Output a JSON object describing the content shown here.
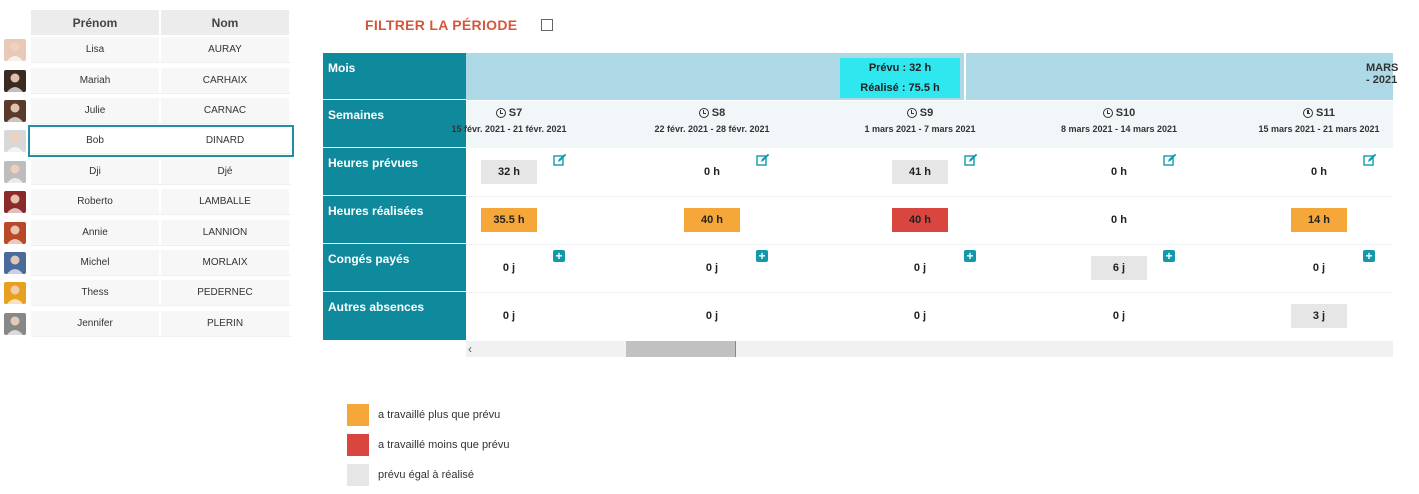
{
  "employees": {
    "headers": {
      "prenom": "Prénom",
      "nom": "Nom"
    },
    "rows": [
      {
        "prenom": "Lisa",
        "nom": "AURAY",
        "avatar": "female-avatar-icon",
        "color": "#e8c9b8"
      },
      {
        "prenom": "Mariah",
        "nom": "CARHAIX",
        "avatar": "female-avatar-icon",
        "color": "#3a2a20"
      },
      {
        "prenom": "Julie",
        "nom": "CARNAC",
        "avatar": "female-avatar-icon",
        "color": "#5a3a2a"
      },
      {
        "prenom": "Bob",
        "nom": "DINARD",
        "avatar": "male-avatar-icon",
        "color": "#d8d8d8"
      },
      {
        "prenom": "Dji",
        "nom": "Djé",
        "avatar": "default-user-icon",
        "color": "#bdbdbd"
      },
      {
        "prenom": "Roberto",
        "nom": "LAMBALLE",
        "avatar": "male-avatar-icon",
        "color": "#8a2a2a"
      },
      {
        "prenom": "Annie",
        "nom": "LANNION",
        "avatar": "female-avatar-icon",
        "color": "#b84a2a"
      },
      {
        "prenom": "Michel",
        "nom": "MORLAIX",
        "avatar": "male-avatar-icon",
        "color": "#4a6a9a"
      },
      {
        "prenom": "Thess",
        "nom": "PEDERNEC",
        "avatar": "female-avatar-icon",
        "color": "#e8a020"
      },
      {
        "prenom": "Jennifer",
        "nom": "PLERIN",
        "avatar": "female-avatar-icon",
        "color": "#888888"
      }
    ],
    "selected": "Bob"
  },
  "filter": {
    "label": "FILTRER LA PÉRIODE"
  },
  "planning": {
    "row_labels": {
      "mois": "Mois",
      "semaines": "Semaines",
      "heures_prevues": "Heures prévues",
      "heures_realisees": "Heures réalisées",
      "conges_payes": "Congés payés",
      "autres_absences": "Autres absences"
    },
    "month_summary": {
      "prevu": "Prévu : 32 h",
      "realise": "Réalisé : 75.5 h"
    },
    "month_title": "MARS - 2021",
    "weeks": [
      {
        "name": "S7",
        "range": "15 févr. 2021 - 21 févr. 2021",
        "prevues": "32 h",
        "prevues_style": "gray",
        "realisees": "35.5 h",
        "realisees_style": "orange",
        "conges": "0 j",
        "conges_style": "plain",
        "autres": "0 j",
        "autres_style": "plain"
      },
      {
        "name": "S8",
        "range": "22 févr. 2021 - 28 févr. 2021",
        "prevues": "0 h",
        "prevues_style": "plain",
        "realisees": "40 h",
        "realisees_style": "orange",
        "conges": "0 j",
        "conges_style": "plain",
        "autres": "0 j",
        "autres_style": "plain"
      },
      {
        "name": "S9",
        "range": "1 mars 2021 - 7 mars 2021",
        "prevues": "41 h",
        "prevues_style": "gray",
        "realisees": "40 h",
        "realisees_style": "red",
        "conges": "0 j",
        "conges_style": "plain",
        "autres": "0 j",
        "autres_style": "plain"
      },
      {
        "name": "S10",
        "range": "8 mars 2021 - 14 mars 2021",
        "prevues": "0 h",
        "prevues_style": "plain",
        "realisees": "0 h",
        "realisees_style": "plain",
        "conges": "6 j",
        "conges_style": "gray",
        "autres": "0 j",
        "autres_style": "plain"
      },
      {
        "name": "S11",
        "range": "15 mars 2021 - 21 mars 2021",
        "prevues": "0 h",
        "prevues_style": "plain",
        "realisees": "14 h",
        "realisees_style": "orange",
        "conges": "0 j",
        "conges_style": "plain",
        "autres": "3 j",
        "autres_style": "gray"
      }
    ]
  },
  "legend": [
    {
      "label": "a travaillé plus que prévu",
      "color": "#f6a73a"
    },
    {
      "label": "a travaillé moins que prévu",
      "color": "#d9463f"
    },
    {
      "label": "prévu égal à réalisé",
      "color": "#e6e6e6"
    }
  ],
  "colors": {
    "teal": "#0e8a9c",
    "light_blue": "#add8e6",
    "cyan": "#2ee7ef",
    "filter_red": "#d5573b"
  }
}
